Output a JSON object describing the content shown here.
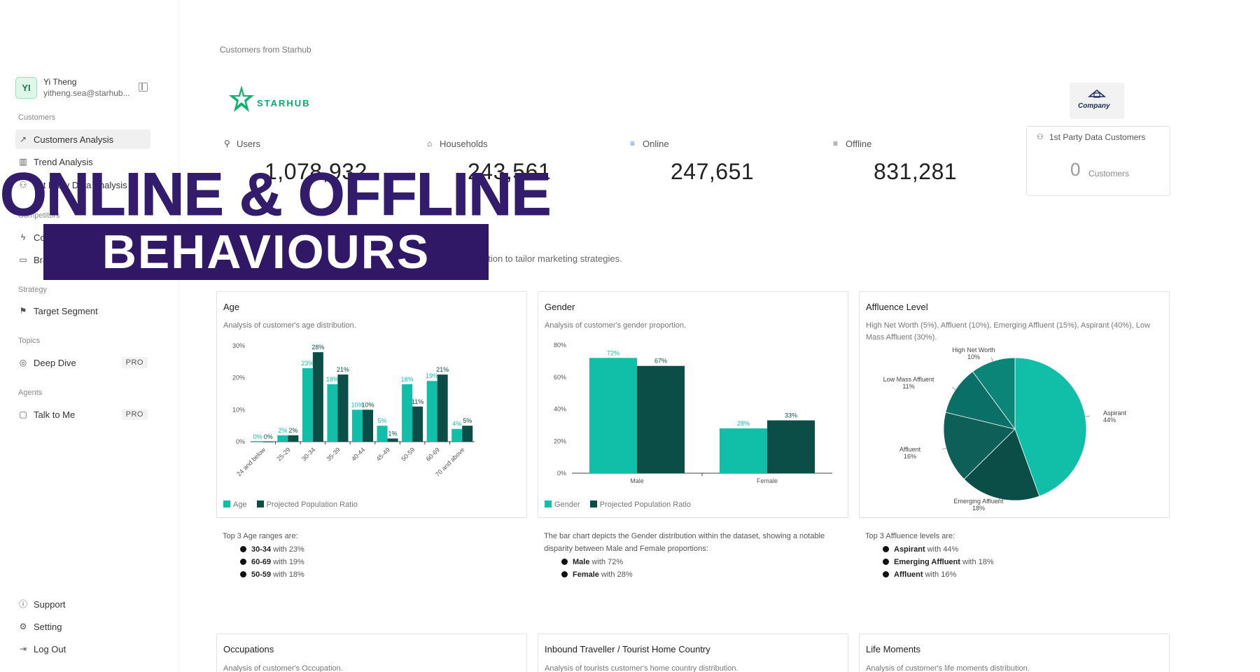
{
  "user": {
    "initials": "YI",
    "name": "Yi Theng",
    "email": "yitheng.sea@starhub..."
  },
  "sidebar": {
    "sections": [
      {
        "label": "Customers",
        "items": [
          {
            "label": "Customers Analysis",
            "icon": "trend-up-icon",
            "active": true
          },
          {
            "label": "Trend Analysis",
            "icon": "bar-chart-icon"
          },
          {
            "label": "1st Party Data Analysis",
            "icon": "users-icon"
          }
        ]
      },
      {
        "label": "Competitors",
        "items": [
          {
            "label": "Competitors",
            "icon": "bolt-icon"
          },
          {
            "label": "Brands",
            "icon": "presentation-icon"
          }
        ]
      },
      {
        "label": "Strategy",
        "items": [
          {
            "label": "Target Segment",
            "icon": "flag-icon"
          }
        ]
      },
      {
        "label": "Topics",
        "items": [
          {
            "label": "Deep Dive",
            "icon": "target-icon",
            "badge": "PRO"
          }
        ]
      },
      {
        "label": "Agents",
        "items": [
          {
            "label": "Talk to Me",
            "icon": "chat-icon",
            "badge": "PRO"
          }
        ]
      }
    ],
    "footer": [
      {
        "label": "Support",
        "icon": "info-icon"
      },
      {
        "label": "Setting",
        "icon": "gear-icon"
      },
      {
        "label": "Log Out",
        "icon": "logout-icon"
      }
    ]
  },
  "breadcrumb": "Customers from Starhub",
  "logo_text": "STARHUB",
  "company_logo_text": "Company",
  "stats": [
    {
      "label": "Users",
      "value": "1,078,932",
      "icon": "person-icon"
    },
    {
      "label": "Households",
      "value": "243,561",
      "icon": "home-icon"
    },
    {
      "label": "Online",
      "value": "247,651",
      "icon": "filter-icon"
    },
    {
      "label": "Offline",
      "value": "831,281",
      "icon": "filter-icon"
    }
  ],
  "first_party": {
    "label": "1st Party Data Customers",
    "value": "0",
    "unit": "Customers"
  },
  "description_fragment": "ation to tailor marketing strategies.",
  "overlay": {
    "title": "ONLINE & OFFLINE",
    "subtitle": "BEHAVIOURS"
  },
  "colors": {
    "accent": "#11bfa8",
    "dark": "#0b4d47",
    "banner": "#311866"
  },
  "cards": {
    "age": {
      "title": "Age",
      "subtitle": "Analysis of customer's age distribution.",
      "legend": [
        "Age",
        "Projected Population Ratio"
      ],
      "summary_title": "Top 3 Age ranges are:",
      "summary_items": [
        {
          "name": "30-34",
          "text": " with 23%"
        },
        {
          "name": "60-69",
          "text": " with 19%"
        },
        {
          "name": "50-59",
          "text": " with 18%"
        }
      ]
    },
    "gender": {
      "title": "Gender",
      "subtitle": "Analysis of customer's gender proportion.",
      "legend": [
        "Gender",
        "Projected Population Ratio"
      ],
      "summary_title": "The bar chart depicts the Gender distribution within the dataset, showing a notable disparity between Male and Female proportions:",
      "summary_items": [
        {
          "name": "Male",
          "text": " with 72%"
        },
        {
          "name": "Female",
          "text": " with 28%"
        }
      ]
    },
    "affluence": {
      "title": "Affluence Level",
      "subtitle": "High Net Worth (5%), Affluent (10%), Emerging Affluent (15%), Aspirant (40%), Low Mass Affluent (30%).",
      "summary_title": "Top 3 Affluence levels are:",
      "summary_items": [
        {
          "name": "Aspirant",
          "text": " with 44%"
        },
        {
          "name": "Emerging Affluent",
          "text": " with 18%"
        },
        {
          "name": "Affluent",
          "text": " with 16%"
        }
      ]
    },
    "occupations": {
      "title": "Occupations",
      "subtitle": "Analysis of customer's Occupation."
    },
    "inbound": {
      "title": "Inbound Traveller / Tourist Home Country",
      "subtitle": "Analysis of tourists customer's home country distribution."
    },
    "life": {
      "title": "Life Moments",
      "subtitle": "Analysis of customer's life moments distribution."
    }
  },
  "chart_data": [
    {
      "type": "bar",
      "title": "Age",
      "categories": [
        "24 and below",
        "25-29",
        "30-34",
        "35-39",
        "40-44",
        "45-49",
        "50-59",
        "60-69",
        "70 and above"
      ],
      "series": [
        {
          "name": "Age",
          "values": [
            0,
            2,
            23,
            18,
            10,
            5,
            18,
            19,
            4
          ]
        },
        {
          "name": "Projected Population Ratio",
          "values": [
            0,
            2,
            28,
            21,
            10,
            1,
            11,
            21,
            5
          ]
        }
      ],
      "yticks": [
        "0%",
        "10%",
        "20%",
        "30%"
      ],
      "ylim": [
        0,
        30
      ],
      "legend": "bottom-left"
    },
    {
      "type": "bar",
      "title": "Gender",
      "categories": [
        "Male",
        "Female"
      ],
      "series": [
        {
          "name": "Gender",
          "values": [
            72,
            28
          ]
        },
        {
          "name": "Projected Population Ratio",
          "values": [
            67,
            33
          ]
        }
      ],
      "yticks": [
        "0%",
        "20%",
        "40%",
        "60%",
        "80%"
      ],
      "ylim": [
        0,
        80
      ],
      "legend": "bottom-left"
    },
    {
      "type": "pie",
      "title": "Affluence Level",
      "slices": [
        {
          "label": "Aspirant",
          "value": 44,
          "color": "#11bfa8"
        },
        {
          "label": "Emerging Affluent",
          "value": 18,
          "color": "#0b4d47"
        },
        {
          "label": "Affluent",
          "value": 16,
          "color": "#0d5f57"
        },
        {
          "label": "Low Mass Affluent",
          "value": 11,
          "color": "#0a6f66"
        },
        {
          "label": "High Net Worth",
          "value": 10,
          "color": "#0b8578"
        }
      ]
    }
  ]
}
